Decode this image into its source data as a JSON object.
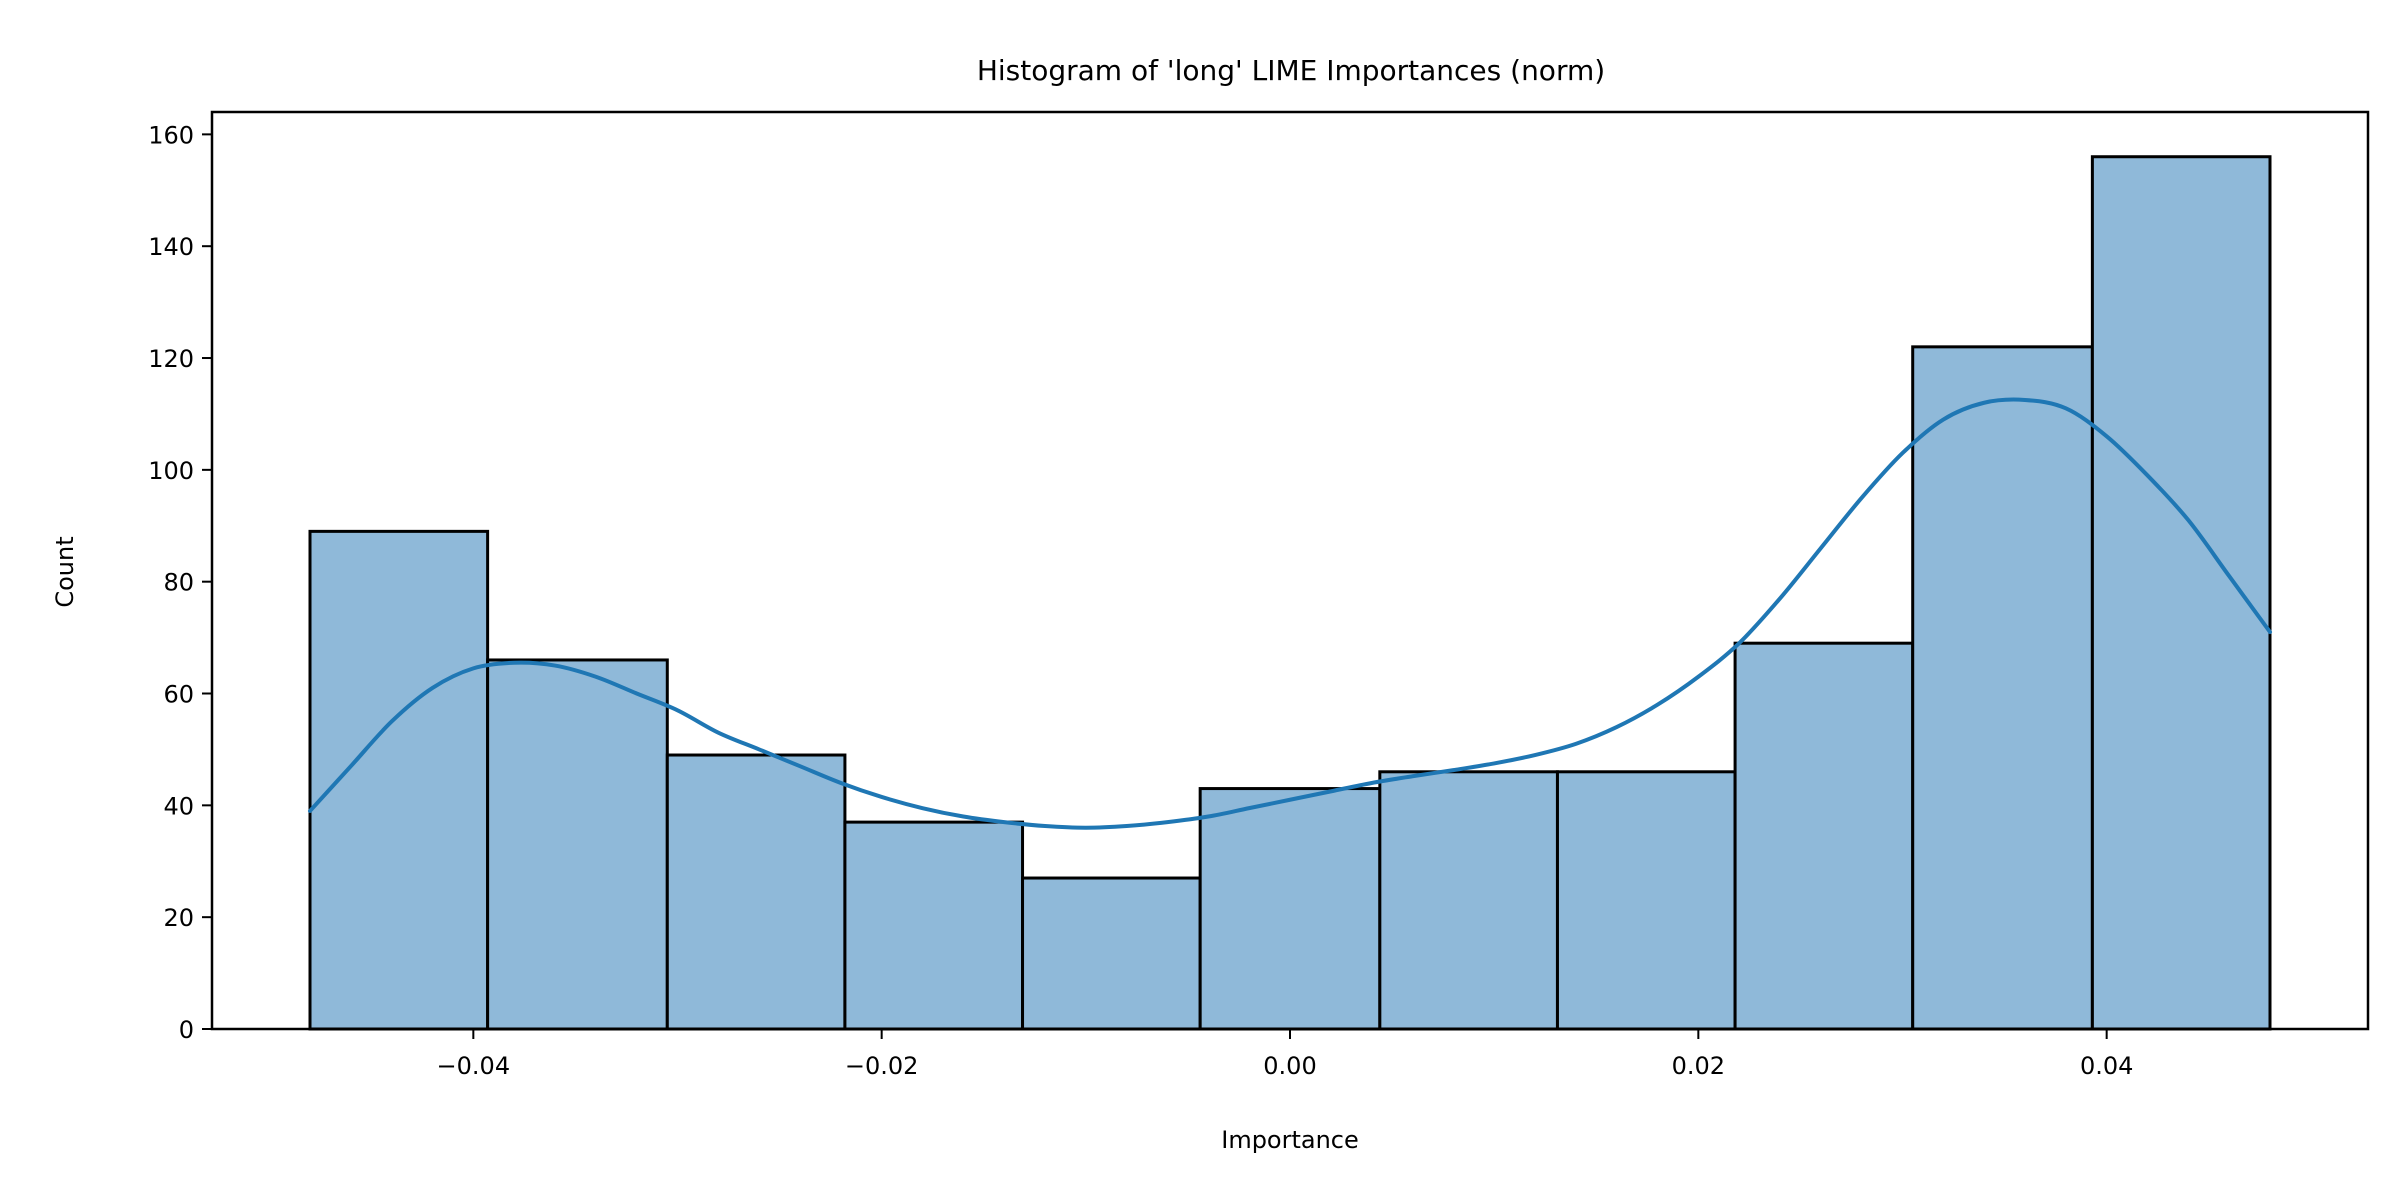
{
  "chart_data": {
    "type": "bar",
    "subtype": "histogram",
    "title": "Histogram of 'long' LIME Importances (norm)",
    "xlabel": "Importance",
    "ylabel": "Count",
    "xlim": [
      -0.0528,
      0.0528
    ],
    "ylim": [
      0,
      164
    ],
    "x_ticks": [
      -0.04,
      -0.02,
      0.0,
      0.02,
      0.04
    ],
    "x_tick_labels": [
      "−0.04",
      "−0.02",
      "0.00",
      "0.02",
      "0.04"
    ],
    "y_ticks": [
      0,
      20,
      40,
      60,
      80,
      100,
      120,
      140,
      160
    ],
    "y_tick_labels": [
      "0",
      "20",
      "40",
      "60",
      "80",
      "100",
      "120",
      "140",
      "160"
    ],
    "bins": [
      {
        "x0": -0.048,
        "x1": -0.0393,
        "count": 89
      },
      {
        "x0": -0.0393,
        "x1": -0.0305,
        "count": 66
      },
      {
        "x0": -0.0305,
        "x1": -0.0218,
        "count": 49
      },
      {
        "x0": -0.0218,
        "x1": -0.0131,
        "count": 37
      },
      {
        "x0": -0.0131,
        "x1": -0.0044,
        "count": 27
      },
      {
        "x0": -0.0044,
        "x1": 0.0044,
        "count": 43
      },
      {
        "x0": 0.0044,
        "x1": 0.0131,
        "count": 46
      },
      {
        "x0": 0.0131,
        "x1": 0.0218,
        "count": 46
      },
      {
        "x0": 0.0218,
        "x1": 0.0305,
        "count": 69
      },
      {
        "x0": 0.0305,
        "x1": 0.0393,
        "count": 122
      },
      {
        "x0": 0.0393,
        "x1": 0.048,
        "count": 156
      }
    ],
    "kde": {
      "x": [
        -0.048,
        -0.046,
        -0.044,
        -0.042,
        -0.04,
        -0.038,
        -0.036,
        -0.034,
        -0.032,
        -0.03,
        -0.028,
        -0.026,
        -0.024,
        -0.022,
        -0.02,
        -0.018,
        -0.016,
        -0.014,
        -0.012,
        -0.01,
        -0.008,
        -0.006,
        -0.004,
        -0.002,
        0.0,
        0.002,
        0.004,
        0.006,
        0.008,
        0.01,
        0.012,
        0.014,
        0.016,
        0.018,
        0.02,
        0.022,
        0.024,
        0.026,
        0.028,
        0.03,
        0.032,
        0.034,
        0.036,
        0.038,
        0.04,
        0.042,
        0.044,
        0.046,
        0.048
      ],
      "y": [
        39,
        47,
        55,
        61,
        64.5,
        65.5,
        65,
        63,
        60,
        57,
        53,
        50,
        47,
        44,
        41.5,
        39.5,
        38,
        37,
        36.3,
        36,
        36.3,
        37,
        38,
        39.5,
        41,
        42.5,
        44,
        45.2,
        46.3,
        47.5,
        49,
        51,
        54,
        58,
        63,
        69,
        77,
        86,
        95,
        103,
        109,
        112,
        112.5,
        111,
        106,
        99,
        91,
        81,
        71
      ]
    },
    "bar_fill": "#8fb9d9",
    "bar_edge": "#000000",
    "kde_color": "#1f77b4",
    "grid": false,
    "legend": "none"
  }
}
